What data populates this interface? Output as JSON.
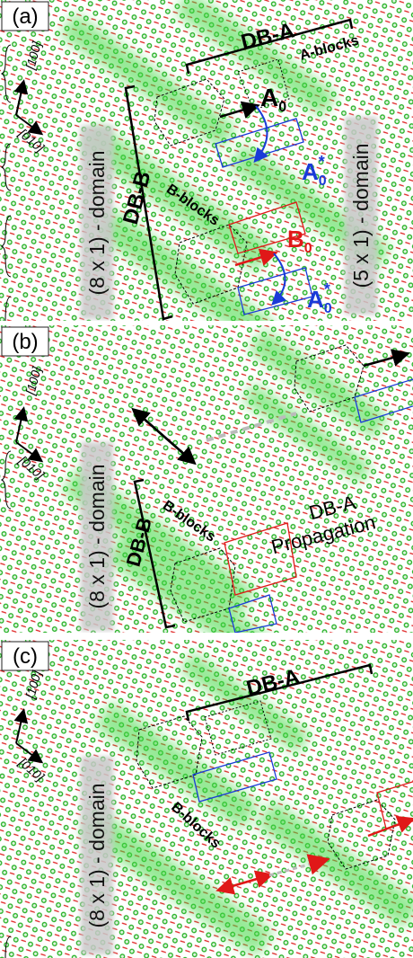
{
  "panels": [
    {
      "label": "(a)",
      "axis_100": "[100]",
      "axis_010": "[010]",
      "db_a": "DB-A",
      "a_blocks": "A-blocks",
      "db_b": "DB-B",
      "b_blocks": "B-blocks",
      "domain_left": "(8 x 1) - domain",
      "domain_right": "(5 x 1) - domain",
      "symbols": [
        {
          "base": "A",
          "sub": "0"
        },
        {
          "base": "A",
          "sub": "0",
          "sup": "*"
        },
        {
          "base": "B",
          "sub": "0"
        },
        {
          "base": "A",
          "sub": "0",
          "sup": "*"
        }
      ]
    },
    {
      "label": "(b)",
      "axis_100": "[100]",
      "axis_010": "[010]",
      "db_b": "DB-B",
      "b_blocks": "B-blocks",
      "db_a": "DB-A",
      "propagation": "Propagation",
      "domain_left": "(8 x 1) - domain"
    },
    {
      "label": "(c)",
      "axis_100": "[100]",
      "axis_010": "[010]",
      "db_a": "DB-A",
      "b_blocks": "B-blocks",
      "domain_left": "(8 x 1) - domain"
    }
  ]
}
